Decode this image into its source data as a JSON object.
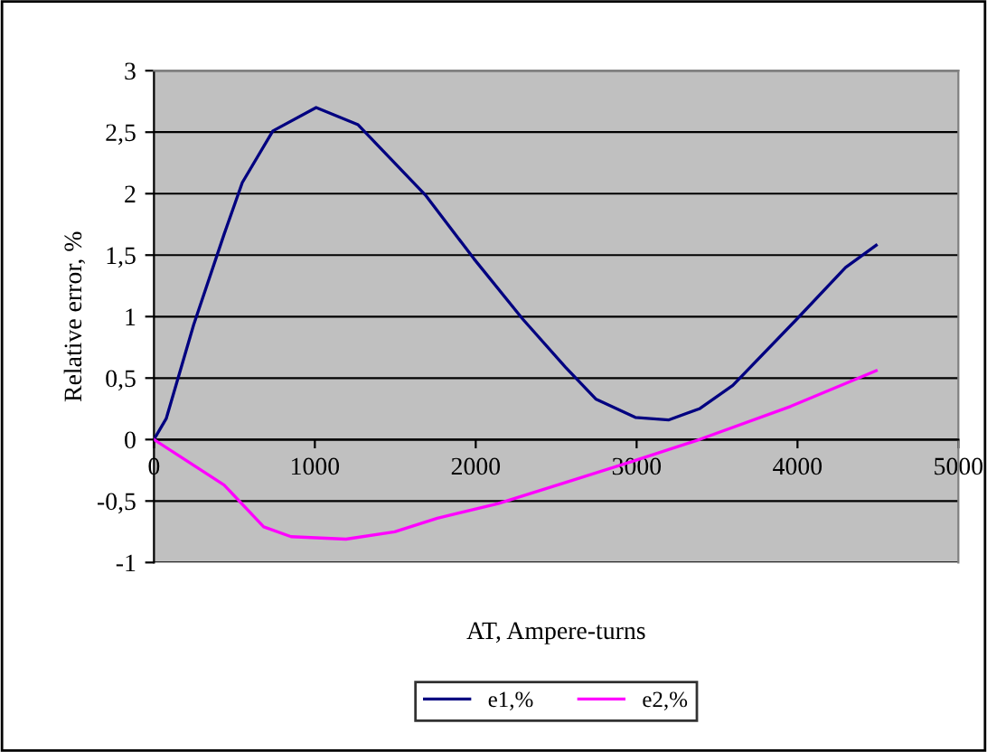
{
  "chart_data": {
    "type": "line",
    "xlabel": "AT, Ampere-turns",
    "ylabel": "Relative error, %",
    "series": [
      {
        "name": "e1,%",
        "color": "#000080",
        "x": [
          0,
          76,
          246,
          436,
          549,
          739,
          1008,
          1269,
          1686,
          1989,
          2292,
          2557,
          2746,
          2992,
          3201,
          3390,
          3598,
          3996,
          4299,
          4489
        ],
        "values": [
          0,
          0.17,
          0.93,
          1.67,
          2.09,
          2.51,
          2.7,
          2.56,
          1.99,
          1.47,
          0.98,
          0.59,
          0.33,
          0.18,
          0.16,
          0.25,
          0.44,
          0.98,
          1.4,
          1.58
        ]
      },
      {
        "name": "e2,%",
        "color": "#ff00ff",
        "x": [
          0,
          436,
          682,
          852,
          1193,
          1496,
          1761,
          2140,
          2557,
          2992,
          3390,
          3958,
          4489
        ],
        "values": [
          0,
          -0.37,
          -0.71,
          -0.79,
          -0.81,
          -0.75,
          -0.64,
          -0.52,
          -0.35,
          -0.17,
          0,
          0.27,
          0.56
        ]
      }
    ],
    "xlim": [
      0,
      5000
    ],
    "xticks": [
      0,
      1000,
      2000,
      3000,
      4000,
      5000
    ],
    "ylim": [
      -1,
      3
    ],
    "yticks": [
      -1,
      {
        "value": -0.5,
        "label": "-0,5"
      },
      0,
      {
        "value": 0.5,
        "label": "0,5"
      },
      1,
      {
        "value": 1.5,
        "label": "1,5"
      },
      2,
      {
        "value": 2.5,
        "label": "2,5"
      },
      3
    ],
    "grid": "y",
    "legend": "bottom",
    "marker": "none",
    "line_style": "solid"
  }
}
